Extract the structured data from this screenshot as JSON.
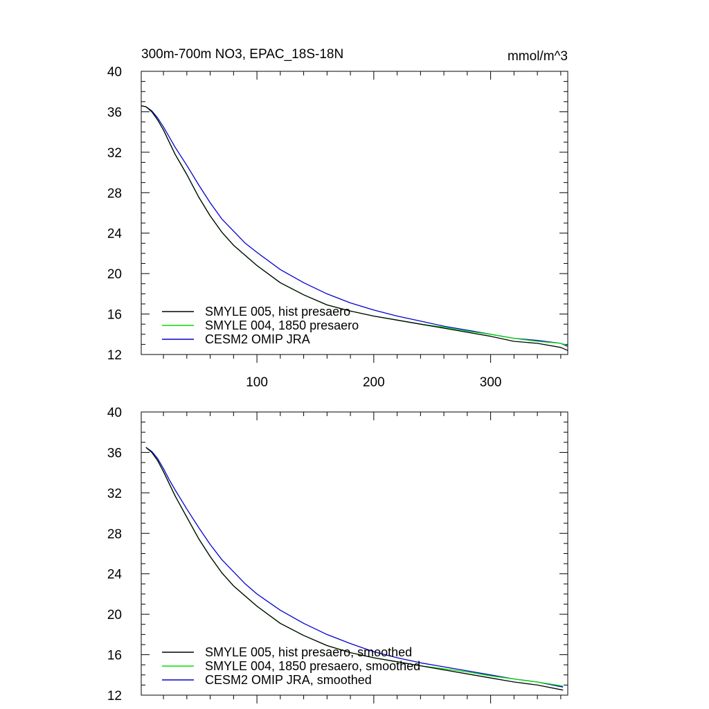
{
  "chart_data": [
    {
      "type": "line",
      "title": "300m-700m NO3, EPAC_18S-18N",
      "units": "mmol/m^3",
      "xlabel": "",
      "ylabel": "",
      "xlim": [
        1,
        366
      ],
      "ylim": [
        12,
        40
      ],
      "x_ticks": [
        100,
        200,
        300
      ],
      "x_tick_labels": [
        "100",
        "200",
        "300"
      ],
      "y_ticks": [
        12,
        16,
        20,
        24,
        28,
        32,
        36,
        40
      ],
      "y_tick_labels": [
        "12",
        "16",
        "20",
        "24",
        "28",
        "32",
        "36",
        "40"
      ],
      "legend_position": "bottom-left",
      "x": [
        1,
        5,
        10,
        15,
        20,
        25,
        30,
        40,
        50,
        60,
        70,
        80,
        90,
        100,
        120,
        140,
        160,
        180,
        200,
        220,
        240,
        260,
        280,
        300,
        320,
        340,
        360,
        366
      ],
      "series": [
        {
          "name": "SMYLE 005, hist presaero",
          "color": "#000000",
          "values": [
            36.6,
            36.5,
            36.0,
            35.2,
            34.2,
            33.0,
            31.8,
            29.8,
            27.6,
            25.7,
            24.1,
            22.8,
            21.8,
            20.8,
            19.1,
            17.9,
            16.9,
            16.3,
            15.8,
            15.4,
            15.0,
            14.6,
            14.2,
            13.8,
            13.3,
            13.1,
            12.7,
            12.4
          ]
        },
        {
          "name": "SMYLE 004, 1850 presaero",
          "color": "#00dd00",
          "values": [
            36.6,
            36.5,
            36.0,
            35.2,
            34.2,
            33.0,
            31.8,
            29.8,
            27.6,
            25.7,
            24.1,
            22.8,
            21.8,
            20.8,
            19.1,
            17.9,
            16.9,
            16.3,
            15.8,
            15.4,
            15.0,
            14.7,
            14.3,
            14.0,
            13.6,
            13.3,
            13.1,
            12.9
          ]
        },
        {
          "name": "CESM2 OMIP JRA",
          "color": "#0000cc",
          "values": [
            36.6,
            36.5,
            36.1,
            35.4,
            34.5,
            33.5,
            32.5,
            30.7,
            28.8,
            27.0,
            25.4,
            24.2,
            23.0,
            22.1,
            20.4,
            19.1,
            18.0,
            17.1,
            16.4,
            15.8,
            15.3,
            14.8,
            14.4,
            14.0,
            13.6,
            13.4,
            13.1,
            12.8
          ]
        }
      ]
    },
    {
      "type": "line",
      "title": "",
      "xlabel": "",
      "ylabel": "",
      "xlim": [
        1,
        366
      ],
      "ylim": [
        12,
        40
      ],
      "x_ticks": [
        100,
        200,
        300
      ],
      "x_tick_labels": [],
      "y_ticks": [
        12,
        16,
        20,
        24,
        28,
        32,
        36,
        40
      ],
      "y_tick_labels": [
        "12",
        "16",
        "20",
        "24",
        "28",
        "32",
        "36",
        "40"
      ],
      "legend_position": "bottom-left",
      "x": [
        5,
        10,
        15,
        20,
        25,
        30,
        40,
        50,
        60,
        70,
        80,
        90,
        100,
        120,
        140,
        160,
        180,
        200,
        220,
        240,
        260,
        280,
        300,
        320,
        340,
        362
      ],
      "series": [
        {
          "name": "SMYLE 005, hist presaero, smoothed",
          "color": "#000000",
          "values": [
            36.5,
            36.0,
            35.2,
            34.1,
            32.9,
            31.7,
            29.6,
            27.5,
            25.7,
            24.1,
            22.8,
            21.8,
            20.8,
            19.1,
            17.9,
            16.9,
            16.2,
            15.7,
            15.3,
            14.9,
            14.5,
            14.1,
            13.7,
            13.3,
            13.0,
            12.5
          ]
        },
        {
          "name": "SMYLE 004, 1850 presaero, smoothed",
          "color": "#00dd00",
          "values": [
            36.5,
            36.0,
            35.2,
            34.1,
            32.9,
            31.7,
            29.6,
            27.5,
            25.7,
            24.1,
            22.8,
            21.8,
            20.8,
            19.1,
            17.9,
            16.9,
            16.2,
            15.7,
            15.3,
            14.9,
            14.6,
            14.3,
            13.9,
            13.6,
            13.3,
            12.9
          ]
        },
        {
          "name": "CESM2 OMIP JRA, smoothed",
          "color": "#0000cc",
          "values": [
            36.5,
            36.1,
            35.4,
            34.4,
            33.3,
            32.3,
            30.4,
            28.6,
            26.9,
            25.4,
            24.2,
            23.0,
            22.0,
            20.4,
            19.1,
            18.0,
            17.1,
            16.3,
            15.7,
            15.2,
            14.8,
            14.4,
            14.0,
            13.6,
            13.3,
            12.8
          ]
        }
      ]
    }
  ]
}
